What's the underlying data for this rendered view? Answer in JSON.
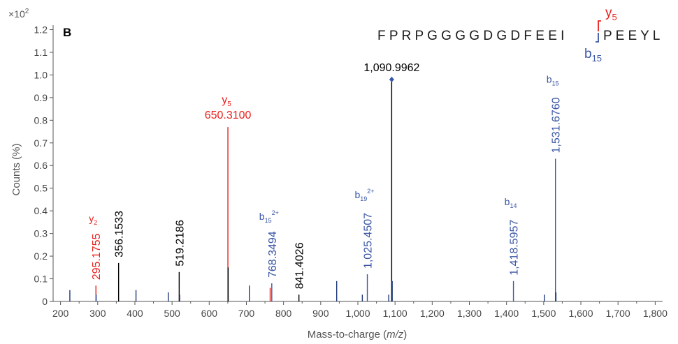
{
  "chart_data": {
    "type": "bar",
    "panel_label": "B",
    "scale_label": "×10",
    "scale_exp": "2",
    "xlabel_pre": "Mass-to-charge (",
    "xlabel_ital": "m/z",
    "xlabel_post": ")",
    "ylabel": "Counts (%)",
    "xlim": [
      180,
      1820
    ],
    "ylim": [
      0,
      1.22
    ],
    "xticks": [
      200,
      300,
      400,
      500,
      600,
      700,
      800,
      900,
      1000,
      1100,
      1200,
      1300,
      1400,
      1500,
      1600,
      1700,
      1800
    ],
    "xtick_labels": [
      "200",
      "300",
      "400",
      "500",
      "600",
      "700",
      "800",
      "900",
      "1,000",
      "1,100",
      "1,200",
      "1,300",
      "1,400",
      "1,500",
      "1,600",
      "1,700",
      "1,800"
    ],
    "yticks": [
      0,
      0.1,
      0.2,
      0.3,
      0.4,
      0.5,
      0.6,
      0.7,
      0.8,
      0.9,
      1.0,
      1.1,
      1.2
    ],
    "ytick_labels": [
      "0",
      "0.1",
      "0.2",
      "0.3",
      "0.4",
      "0.5",
      "0.6",
      "0.7",
      "0.8",
      "0.9",
      "1.0",
      "1.1",
      "1.2"
    ],
    "colors": {
      "red": "#e8201c",
      "blue": "#3a56a6",
      "black": "#000000",
      "navy": "#1f3a78",
      "axis": "#555555"
    },
    "peaks": [
      {
        "x": 225.0,
        "y": 0.05,
        "c": "navy"
      },
      {
        "x": 295.1755,
        "y": 0.07,
        "c": "red"
      },
      {
        "x": 296.0,
        "y": 0.03,
        "c": "blue"
      },
      {
        "x": 356.1533,
        "y": 0.17,
        "c": "black"
      },
      {
        "x": 403.0,
        "y": 0.05,
        "c": "navy"
      },
      {
        "x": 490.0,
        "y": 0.04,
        "c": "navy"
      },
      {
        "x": 519.2186,
        "y": 0.13,
        "c": "black"
      },
      {
        "x": 520.5,
        "y": 0.03,
        "c": "navy"
      },
      {
        "x": 650.31,
        "y": 0.77,
        "c": "red"
      },
      {
        "x": 651.0,
        "y": 0.15,
        "c": "black"
      },
      {
        "x": 708.0,
        "y": 0.07,
        "c": "navy"
      },
      {
        "x": 764.0,
        "y": 0.06,
        "c": "red"
      },
      {
        "x": 768.3494,
        "y": 0.08,
        "c": "blue"
      },
      {
        "x": 841.4026,
        "y": 0.03,
        "c": "black"
      },
      {
        "x": 943.0,
        "y": 0.09,
        "c": "navy"
      },
      {
        "x": 1012.0,
        "y": 0.03,
        "c": "navy"
      },
      {
        "x": 1025.4507,
        "y": 0.12,
        "c": "blue"
      },
      {
        "x": 1083.0,
        "y": 0.03,
        "c": "navy"
      },
      {
        "x": 1090.9962,
        "y": 0.98,
        "c": "black"
      },
      {
        "x": 1092.5,
        "y": 0.09,
        "c": "navy"
      },
      {
        "x": 1418.5957,
        "y": 0.09,
        "c": "blue"
      },
      {
        "x": 1502.0,
        "y": 0.03,
        "c": "navy"
      },
      {
        "x": 1531.676,
        "y": 0.63,
        "c": "blue"
      },
      {
        "x": 1533.0,
        "y": 0.04,
        "c": "navy"
      }
    ],
    "annotations": [
      {
        "x": 295.1755,
        "y": 0.07,
        "label": "295.1755",
        "ion": "y",
        "sub": "2",
        "sup": "",
        "c": "red",
        "rot": true
      },
      {
        "x": 356.1533,
        "y": 0.17,
        "label": "356.1533",
        "ion": "",
        "sub": "",
        "sup": "",
        "c": "black",
        "rot": true
      },
      {
        "x": 519.2186,
        "y": 0.13,
        "label": "519.2186",
        "ion": "",
        "sub": "",
        "sup": "",
        "c": "black",
        "rot": true
      },
      {
        "x": 650.31,
        "y": 0.77,
        "label": "650.3100",
        "ion": "y",
        "sub": "5",
        "sup": "",
        "c": "red",
        "rot": false
      },
      {
        "x": 768.3494,
        "y": 0.08,
        "label": "768.3494",
        "ion": "b",
        "sub": "15",
        "sup": "2+",
        "c": "blue",
        "rot": true
      },
      {
        "x": 841.4026,
        "y": 0.03,
        "label": "841.4026",
        "ion": "",
        "sub": "",
        "sup": "",
        "c": "black",
        "rot": true
      },
      {
        "x": 1025.4507,
        "y": 0.12,
        "label": "1,025.4507",
        "ion": "b",
        "sub": "19",
        "sup": "2+",
        "c": "blue",
        "rot": true
      },
      {
        "x": 1090.9962,
        "y": 0.98,
        "label": "1,090.9962",
        "ion": "",
        "sub": "",
        "sup": "",
        "c": "black",
        "rot": false,
        "diamond": true
      },
      {
        "x": 1418.5957,
        "y": 0.09,
        "label": "1,418.5957",
        "ion": "b",
        "sub": "14",
        "sup": "",
        "c": "blue",
        "rot": true
      },
      {
        "x": 1531.676,
        "y": 0.63,
        "label": "1,531.6760",
        "ion": "b",
        "sub": "15",
        "sup": "",
        "c": "blue",
        "rot": true
      }
    ],
    "sequence": {
      "before": "F P R P G G G G D G D F E E I",
      "after": "P E E Y L",
      "y_ion": "y",
      "y_sub": "5",
      "b_ion": "b",
      "b_sub": "15"
    }
  }
}
